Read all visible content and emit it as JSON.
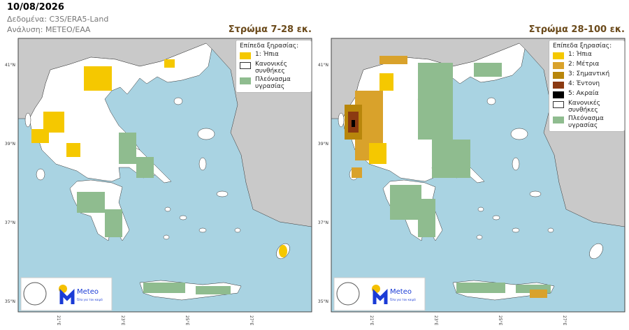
{
  "header": {
    "date": "10/08/2026",
    "source": "Δεδομένα: C3S/ERA5-Land",
    "analysis": "Ανάλυση: ΜΕΤΕΟ/ΕΑΑ"
  },
  "map": {
    "lat_labels": [
      "41°N",
      "39°N",
      "37°N",
      "35°N"
    ],
    "lon_labels": [
      "21°E",
      "23°E",
      "25°E",
      "27°E"
    ]
  },
  "panels": [
    {
      "title": "Στρώμα 7-28 εκ.",
      "legend": {
        "title": "Επίπεδα ξηρασίας:",
        "items": [
          {
            "label": "1: Ήπια",
            "color": "#f5c800"
          },
          {
            "label": "Κανονικές συνθήκες",
            "color": "#ffffff"
          },
          {
            "label": "Πλεόνασμα υγρασίας",
            "color": "#8fbc8f"
          }
        ]
      }
    },
    {
      "title": "Στρώμα 28-100 εκ.",
      "legend": {
        "title": "Επίπεδα ξηρασίας:",
        "items": [
          {
            "label": "1: Ήπια",
            "color": "#f5c800"
          },
          {
            "label": "2: Μέτρια",
            "color": "#d9a22b"
          },
          {
            "label": "3: Σημαντική",
            "color": "#b8860b"
          },
          {
            "label": "4: Έντονη",
            "color": "#8b3a12"
          },
          {
            "label": "5: Ακραία",
            "color": "#000000"
          },
          {
            "label": "Κανονικές συνθήκες",
            "color": "#ffffff"
          },
          {
            "label": "Πλεόνασμα υγρασίας",
            "color": "#8fbc8f"
          }
        ]
      }
    }
  ],
  "logo": {
    "name": "Meteo",
    "tagline": "Όλα για τον καιρό"
  }
}
